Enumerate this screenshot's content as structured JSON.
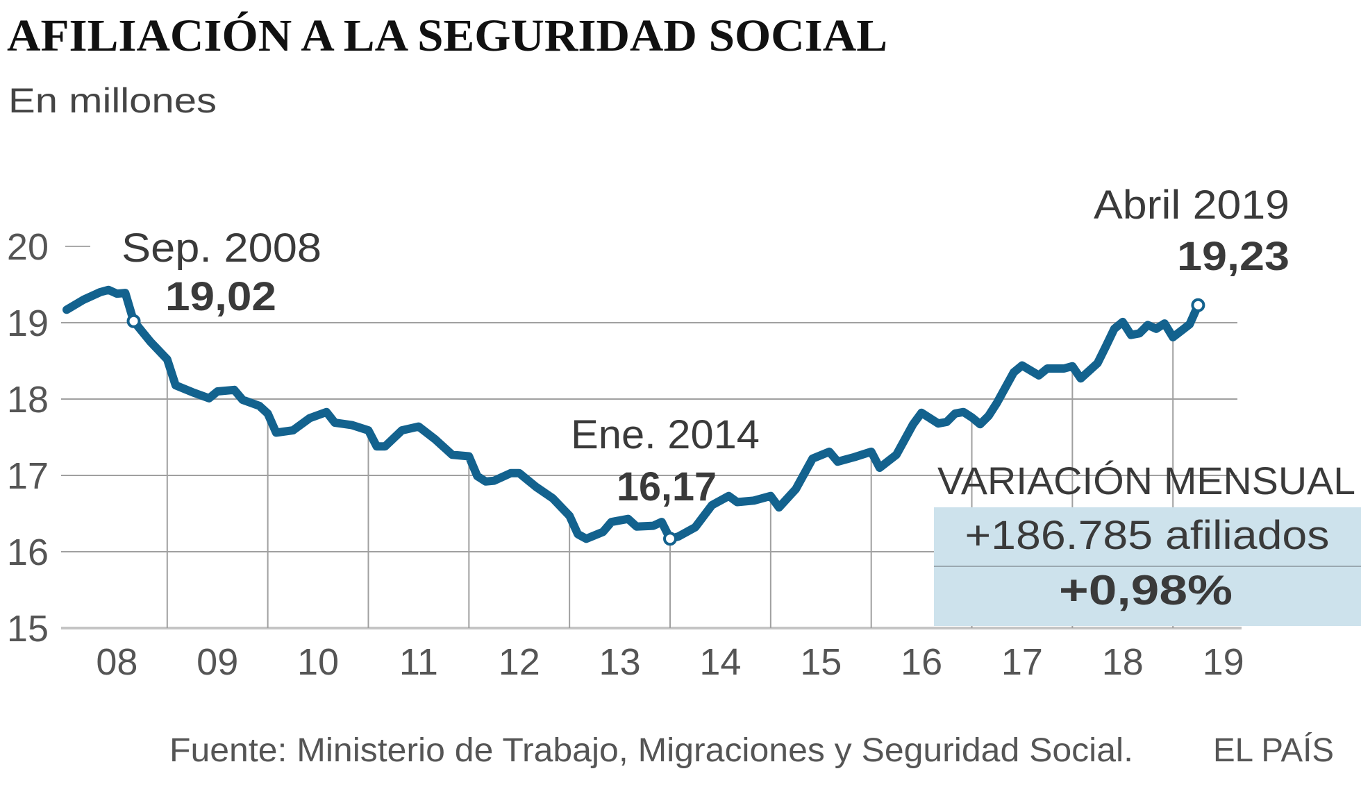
{
  "colors": {
    "line": "#13628e",
    "grid": "#a0a0a0",
    "box": "#cde2ec",
    "text": "#3a3a3a"
  },
  "header": {
    "title": "AFILIACIÓN A LA SEGURIDAD SOCIAL",
    "subtitle": "En millones"
  },
  "footer": {
    "source": "Fuente: Ministerio de Trabajo, Migraciones y Seguridad Social.",
    "brand": "EL PAÍS"
  },
  "callout": {
    "heading": "VARIACIÓN MENSUAL",
    "afiliados": "+186.785 afiliados",
    "percent": "+0,98%"
  },
  "chart_data": {
    "type": "line",
    "title": "AFILIACIÓN A LA SEGURIDAD SOCIAL",
    "subtitle": "En millones",
    "xlabel": "",
    "ylabel": "",
    "ylim": [
      15,
      20
    ],
    "yticks": [
      "15",
      "16",
      "17",
      "18",
      "19",
      "20"
    ],
    "xticks": [
      "08",
      "09",
      "10",
      "11",
      "12",
      "13",
      "14",
      "15",
      "16",
      "17",
      "18",
      "19"
    ],
    "grid": true,
    "annotations": [
      {
        "date": "2008-09",
        "label": "Sep. 2008",
        "value_label": "19,02",
        "value": 19.02
      },
      {
        "date": "2014-01",
        "label": "Ene. 2014",
        "value_label": "16,17",
        "value": 16.17
      },
      {
        "date": "2019-04",
        "label": "Abril 2019",
        "value_label": "19,23",
        "value": 19.23
      }
    ],
    "series": [
      {
        "points": [
          [
            "2008-01",
            19.17
          ],
          [
            "2008-03",
            19.3
          ],
          [
            "2008-05",
            19.4
          ],
          [
            "2008-06",
            19.43
          ],
          [
            "2008-07",
            19.38
          ],
          [
            "2008-08",
            19.39
          ],
          [
            "2008-09",
            19.02
          ],
          [
            "2008-11",
            18.75
          ],
          [
            "2009-01",
            18.52
          ],
          [
            "2009-02",
            18.18
          ],
          [
            "2009-04",
            18.09
          ],
          [
            "2009-06",
            18.01
          ],
          [
            "2009-07",
            18.1
          ],
          [
            "2009-09",
            18.12
          ],
          [
            "2009-10",
            17.99
          ],
          [
            "2009-12",
            17.91
          ],
          [
            "2010-01",
            17.81
          ],
          [
            "2010-02",
            17.56
          ],
          [
            "2010-04",
            17.59
          ],
          [
            "2010-06",
            17.75
          ],
          [
            "2010-08",
            17.83
          ],
          [
            "2010-09",
            17.69
          ],
          [
            "2010-11",
            17.66
          ],
          [
            "2011-01",
            17.59
          ],
          [
            "2011-02",
            17.38
          ],
          [
            "2011-03",
            17.38
          ],
          [
            "2011-05",
            17.59
          ],
          [
            "2011-07",
            17.64
          ],
          [
            "2011-09",
            17.47
          ],
          [
            "2011-11",
            17.27
          ],
          [
            "2012-01",
            17.25
          ],
          [
            "2012-02",
            16.99
          ],
          [
            "2012-03",
            16.92
          ],
          [
            "2012-04",
            16.93
          ],
          [
            "2012-06",
            17.03
          ],
          [
            "2012-07",
            17.03
          ],
          [
            "2012-09",
            16.85
          ],
          [
            "2012-11",
            16.7
          ],
          [
            "2013-01",
            16.47
          ],
          [
            "2013-02",
            16.23
          ],
          [
            "2013-03",
            16.17
          ],
          [
            "2013-05",
            16.26
          ],
          [
            "2013-06",
            16.39
          ],
          [
            "2013-08",
            16.43
          ],
          [
            "2013-09",
            16.33
          ],
          [
            "2013-11",
            16.34
          ],
          [
            "2013-12",
            16.39
          ],
          [
            "2014-01",
            16.17
          ],
          [
            "2014-02",
            16.2
          ],
          [
            "2014-04",
            16.32
          ],
          [
            "2014-06",
            16.61
          ],
          [
            "2014-08",
            16.73
          ],
          [
            "2014-09",
            16.65
          ],
          [
            "2014-11",
            16.67
          ],
          [
            "2015-01",
            16.73
          ],
          [
            "2015-02",
            16.58
          ],
          [
            "2015-04",
            16.82
          ],
          [
            "2015-06",
            17.22
          ],
          [
            "2015-08",
            17.31
          ],
          [
            "2015-09",
            17.18
          ],
          [
            "2015-11",
            17.24
          ],
          [
            "2016-01",
            17.31
          ],
          [
            "2016-02",
            17.1
          ],
          [
            "2016-04",
            17.27
          ],
          [
            "2016-06",
            17.67
          ],
          [
            "2016-07",
            17.82
          ],
          [
            "2016-09",
            17.68
          ],
          [
            "2016-10",
            17.7
          ],
          [
            "2016-11",
            17.81
          ],
          [
            "2016-12",
            17.83
          ],
          [
            "2017-01",
            17.76
          ],
          [
            "2017-02",
            17.67
          ],
          [
            "2017-03",
            17.78
          ],
          [
            "2017-04",
            17.95
          ],
          [
            "2017-06",
            18.35
          ],
          [
            "2017-07",
            18.44
          ],
          [
            "2017-09",
            18.31
          ],
          [
            "2017-10",
            18.4
          ],
          [
            "2017-12",
            18.4
          ],
          [
            "2018-01",
            18.43
          ],
          [
            "2018-02",
            18.27
          ],
          [
            "2018-04",
            18.47
          ],
          [
            "2018-05",
            18.69
          ],
          [
            "2018-06",
            18.92
          ],
          [
            "2018-07",
            19.01
          ],
          [
            "2018-08",
            18.84
          ],
          [
            "2018-09",
            18.86
          ],
          [
            "2018-10",
            18.97
          ],
          [
            "2018-11",
            18.92
          ],
          [
            "2018-12",
            18.99
          ],
          [
            "2019-01",
            18.81
          ],
          [
            "2019-03",
            18.98
          ],
          [
            "2019-04",
            19.23
          ]
        ]
      }
    ]
  }
}
